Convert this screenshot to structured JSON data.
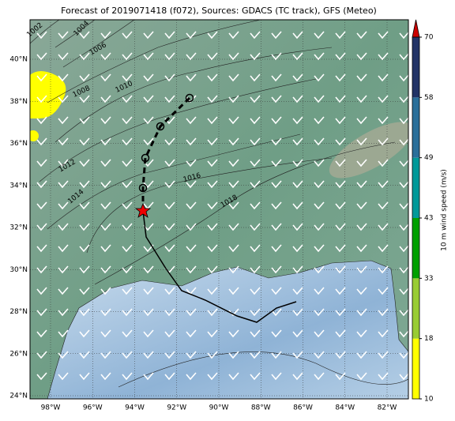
{
  "title": "Forecast of 2019071418 (f072), Sources: GDACS (TC track), GFS (Meteo)",
  "map": {
    "lon_labels": [
      "98°W",
      "96°W",
      "94°W",
      "92°W",
      "90°W",
      "88°W",
      "86°W",
      "84°W",
      "82°W"
    ],
    "lat_labels": [
      "40°N",
      "38°N",
      "36°N",
      "34°N",
      "32°N",
      "30°N",
      "28°N",
      "26°N",
      "24°N"
    ],
    "isobar_labels": [
      "1002",
      "1004",
      "1006",
      "1008",
      "1010",
      "1012",
      "1014",
      "1016",
      "1018"
    ]
  },
  "colorbar": {
    "label": "10 m wind speed (m/s)",
    "ticks": [
      10,
      18,
      33,
      43,
      49,
      58,
      70
    ],
    "colors": [
      "#ffff00",
      "#99cc33",
      "#00a000",
      "#009999",
      "#2a6f9a",
      "#223366"
    ],
    "extend_color": "#cc0000"
  }
}
